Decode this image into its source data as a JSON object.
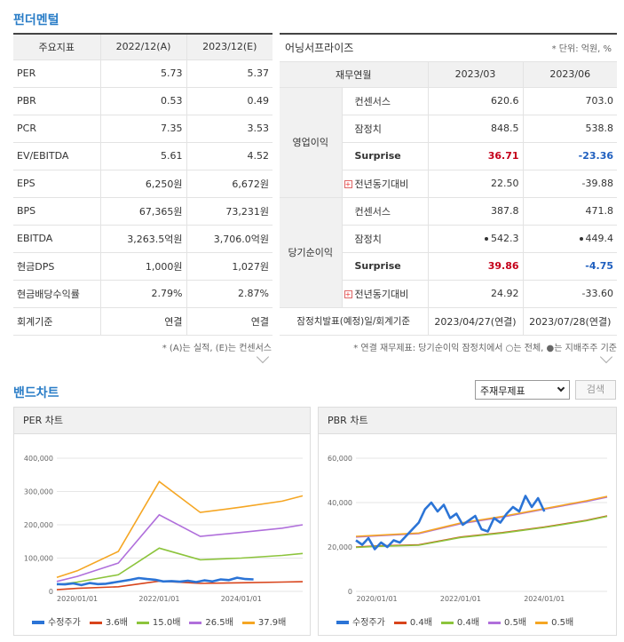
{
  "fundamental": {
    "title": "펀더멘털",
    "headers": [
      "주요지표",
      "2022/12(A)",
      "2023/12(E)"
    ],
    "rows": [
      [
        "PER",
        "5.73",
        "5.37"
      ],
      [
        "PBR",
        "0.53",
        "0.49"
      ],
      [
        "PCR",
        "7.35",
        "3.53"
      ],
      [
        "EV/EBITDA",
        "5.61",
        "4.52"
      ],
      [
        "EPS",
        "6,250원",
        "6,672원"
      ],
      [
        "BPS",
        "67,365원",
        "73,231원"
      ],
      [
        "EBITDA",
        "3,263.5억원",
        "3,706.0억원"
      ],
      [
        "현금DPS",
        "1,000원",
        "1,027원"
      ],
      [
        "현금배당수익률",
        "2.79%",
        "2.87%"
      ],
      [
        "회계기준",
        "연결",
        "연결"
      ]
    ],
    "note": "* (A)는 실적, (E)는 컨센서스"
  },
  "earnings": {
    "title": "어닝서프라이즈",
    "unit": "* 단위: 억원, %",
    "headers": [
      "재무연월",
      "2023/03",
      "2023/06"
    ],
    "op_group": "영업이익",
    "net_group": "당기순이익",
    "op": {
      "consensus": [
        "컨센서스",
        "620.6",
        "703.0"
      ],
      "prelim": [
        "잠정치",
        "848.5",
        "538.8"
      ],
      "surprise": [
        "Surprise",
        "36.71",
        "-23.36"
      ],
      "yoy": [
        "전년동기대비",
        "22.50",
        "-39.88"
      ]
    },
    "net": {
      "consensus": [
        "컨센서스",
        "387.8",
        "471.8"
      ],
      "prelim": [
        "잠정치",
        "542.3",
        "449.4"
      ],
      "surprise": [
        "Surprise",
        "39.86",
        "-4.75"
      ],
      "yoy": [
        "전년동기대비",
        "24.92",
        "-33.60"
      ]
    },
    "footer": [
      "잠정치발표(예정)일/회계기준",
      "2023/04/27(연결)",
      "2023/07/28(연결)"
    ],
    "note": "* 연결 재무제표: 당기순이익 잠정치에서 ○는 전체, ●는 지배주주 기준"
  },
  "band": {
    "title": "밴드차트",
    "select_value": "주재무제표",
    "search_label": "검색"
  },
  "chart_data": [
    {
      "type": "line",
      "title": "PER 차트",
      "ylim": [
        0,
        400000
      ],
      "yticks": [
        "0",
        "100,000",
        "200,000",
        "300,000",
        "400,000"
      ],
      "xticks": [
        "2020/01/01",
        "2022/01/01",
        "2024/01/01"
      ],
      "x_years": [
        2019.5,
        2020.0,
        2021.0,
        2022.0,
        2023.0,
        2024.0,
        2025.0,
        2025.5
      ],
      "series": [
        {
          "name": "3.6배",
          "color": "#d8441b",
          "values": [
            5000,
            9000,
            14000,
            31000,
            24000,
            26000,
            28000,
            29000
          ]
        },
        {
          "name": "15.0배",
          "color": "#8cc43c",
          "values": [
            20000,
            28000,
            50000,
            130000,
            95000,
            100000,
            108000,
            114000
          ]
        },
        {
          "name": "26.5배",
          "color": "#b06fdb",
          "values": [
            30000,
            45000,
            85000,
            230000,
            165000,
            177000,
            190000,
            200000
          ]
        },
        {
          "name": "37.9배",
          "color": "#f5a623",
          "values": [
            42000,
            62000,
            120000,
            330000,
            237000,
            253000,
            271000,
            287000
          ]
        }
      ],
      "price": {
        "name": "수정주가",
        "color": "#2b74d6",
        "x": [
          2019.5,
          2019.7,
          2019.9,
          2020.1,
          2020.3,
          2020.5,
          2020.7,
          2020.9,
          2021.1,
          2021.3,
          2021.5,
          2021.7,
          2021.9,
          2022.1,
          2022.3,
          2022.5,
          2022.7,
          2022.9,
          2023.1,
          2023.3,
          2023.5,
          2023.7,
          2023.9,
          2024.1,
          2024.3
        ],
        "values": [
          22000,
          21000,
          24000,
          19000,
          25000,
          22000,
          23000,
          27000,
          31000,
          35000,
          40000,
          37000,
          35000,
          30000,
          31000,
          29000,
          32000,
          28000,
          33000,
          30000,
          36000,
          34000,
          41000,
          37000,
          36000
        ]
      }
    },
    {
      "type": "line",
      "title": "PBR 차트",
      "ylim": [
        0,
        60000
      ],
      "yticks": [
        "0",
        "20,000",
        "40,000",
        "60,000"
      ],
      "xticks": [
        "2020/01/01",
        "2022/01/01",
        "2024/01/01"
      ],
      "x_years": [
        2019.5,
        2020.0,
        2021.0,
        2022.0,
        2023.0,
        2024.0,
        2025.0,
        2025.5
      ],
      "series": [
        {
          "name": "0.4배",
          "color": "#d8441b",
          "values": [
            20000,
            20500,
            21000,
            24500,
            26500,
            29000,
            32000,
            34000
          ]
        },
        {
          "name": "0.4배",
          "color": "#8cc43c",
          "values": [
            19800,
            20300,
            20800,
            24300,
            26300,
            28800,
            31800,
            33800
          ]
        },
        {
          "name": "0.5배",
          "color": "#b06fdb",
          "values": [
            24500,
            25000,
            26000,
            30500,
            33500,
            37000,
            40500,
            42500
          ]
        },
        {
          "name": "0.5배",
          "color": "#f5a623",
          "values": [
            24800,
            25300,
            26300,
            30800,
            33800,
            37300,
            40800,
            42800
          ]
        }
      ],
      "price": {
        "name": "수정주가",
        "color": "#2b74d6",
        "x": [
          2019.5,
          2019.65,
          2019.8,
          2019.95,
          2020.1,
          2020.25,
          2020.4,
          2020.55,
          2020.7,
          2020.85,
          2021.0,
          2021.15,
          2021.3,
          2021.45,
          2021.6,
          2021.75,
          2021.9,
          2022.05,
          2022.2,
          2022.35,
          2022.5,
          2022.65,
          2022.8,
          2022.95,
          2023.1,
          2023.25,
          2023.4,
          2023.55,
          2023.7,
          2023.85,
          2024.0
        ],
        "values": [
          23000,
          21000,
          24000,
          19000,
          22000,
          20000,
          23000,
          22000,
          25000,
          28000,
          31000,
          37000,
          40000,
          36000,
          39000,
          33000,
          35000,
          30000,
          32000,
          34000,
          28000,
          27000,
          33000,
          31000,
          35000,
          38000,
          36000,
          43000,
          38000,
          42000,
          36000
        ]
      }
    }
  ]
}
